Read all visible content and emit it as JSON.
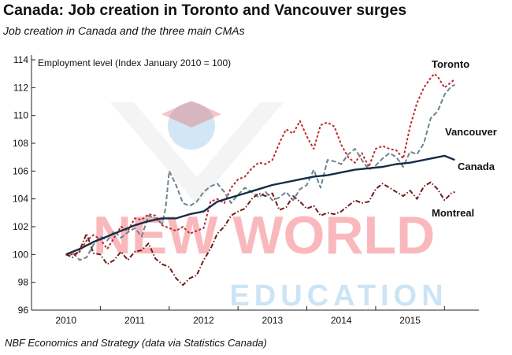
{
  "title": "Canada: Job creation in Toronto and Vancouver surges",
  "subtitle": "Job creation in Canada and the three main CMAs",
  "source": "NBF Economics and Strategy (data via Statistics Canada)",
  "watermark": {
    "line1": "NEW WORLD",
    "line2": "EDUCATION"
  },
  "chart_data": {
    "type": "line",
    "ylabel": "Employment level (Index January 2010 = 100)",
    "ylim": [
      96,
      114
    ],
    "yticks": [
      96,
      98,
      100,
      102,
      104,
      106,
      108,
      110,
      112,
      114
    ],
    "xlim": [
      2009.5,
      2016.0
    ],
    "xticks": [
      "2010",
      "2011",
      "2012",
      "2013",
      "2014",
      "2015"
    ],
    "grid": false,
    "series": [
      {
        "name": "Toronto",
        "color": "#c0262d",
        "dash": "3,2.5",
        "width": 2,
        "points": [
          [
            2010.0,
            100.0
          ],
          [
            2010.1,
            100.0
          ],
          [
            2010.2,
            100.2
          ],
          [
            2010.3,
            101.0
          ],
          [
            2010.4,
            101.4
          ],
          [
            2010.5,
            101.1
          ],
          [
            2010.6,
            100.4
          ],
          [
            2010.7,
            101.2
          ],
          [
            2010.8,
            102.0
          ],
          [
            2010.9,
            101.7
          ],
          [
            2011.0,
            102.6
          ],
          [
            2011.1,
            102.5
          ],
          [
            2011.2,
            102.9
          ],
          [
            2011.3,
            102.8
          ],
          [
            2011.4,
            102.1
          ],
          [
            2011.5,
            101.9
          ],
          [
            2011.6,
            101.7
          ],
          [
            2011.7,
            102.0
          ],
          [
            2011.8,
            101.5
          ],
          [
            2011.9,
            101.7
          ],
          [
            2012.0,
            101.9
          ],
          [
            2012.1,
            103.8
          ],
          [
            2012.2,
            104.0
          ],
          [
            2012.3,
            103.7
          ],
          [
            2012.4,
            104.8
          ],
          [
            2012.5,
            105.4
          ],
          [
            2012.6,
            105.6
          ],
          [
            2012.7,
            106.2
          ],
          [
            2012.8,
            106.6
          ],
          [
            2012.9,
            106.5
          ],
          [
            2013.0,
            106.8
          ],
          [
            2013.1,
            108.0
          ],
          [
            2013.2,
            109.0
          ],
          [
            2013.3,
            108.7
          ],
          [
            2013.4,
            109.6
          ],
          [
            2013.5,
            108.5
          ],
          [
            2013.6,
            107.6
          ],
          [
            2013.7,
            109.3
          ],
          [
            2013.8,
            109.5
          ],
          [
            2013.9,
            109.2
          ],
          [
            2014.0,
            107.9
          ],
          [
            2014.1,
            107.0
          ],
          [
            2014.2,
            106.6
          ],
          [
            2014.3,
            107.3
          ],
          [
            2014.4,
            106.3
          ],
          [
            2014.5,
            107.6
          ],
          [
            2014.6,
            107.8
          ],
          [
            2014.7,
            107.6
          ],
          [
            2014.8,
            107.5
          ],
          [
            2014.9,
            106.9
          ],
          [
            2015.0,
            109.2
          ],
          [
            2015.1,
            110.9
          ],
          [
            2015.2,
            112.0
          ],
          [
            2015.3,
            112.7
          ],
          [
            2015.35,
            113.0
          ],
          [
            2015.4,
            112.8
          ],
          [
            2015.5,
            112.0
          ],
          [
            2015.6,
            112.4
          ],
          [
            2015.65,
            112.6
          ]
        ]
      },
      {
        "name": "Vancouver",
        "color": "#6b8590",
        "dash": "6,3",
        "width": 2,
        "points": [
          [
            2010.0,
            100.0
          ],
          [
            2010.1,
            100.1
          ],
          [
            2010.2,
            99.6
          ],
          [
            2010.3,
            99.8
          ],
          [
            2010.4,
            100.7
          ],
          [
            2010.5,
            101.3
          ],
          [
            2010.6,
            101.0
          ],
          [
            2010.7,
            101.7
          ],
          [
            2010.8,
            101.2
          ],
          [
            2010.9,
            101.6
          ],
          [
            2011.0,
            101.9
          ],
          [
            2011.1,
            101.3
          ],
          [
            2011.2,
            102.8
          ],
          [
            2011.3,
            102.6
          ],
          [
            2011.4,
            102.2
          ],
          [
            2011.45,
            103.4
          ],
          [
            2011.5,
            106.0
          ],
          [
            2011.6,
            105.0
          ],
          [
            2011.7,
            103.7
          ],
          [
            2011.8,
            103.5
          ],
          [
            2011.9,
            103.8
          ],
          [
            2012.0,
            104.5
          ],
          [
            2012.1,
            104.9
          ],
          [
            2012.2,
            105.1
          ],
          [
            2012.3,
            104.5
          ],
          [
            2012.4,
            103.7
          ],
          [
            2012.5,
            104.3
          ],
          [
            2012.6,
            104.8
          ],
          [
            2012.7,
            104.5
          ],
          [
            2012.8,
            104.1
          ],
          [
            2012.9,
            104.5
          ],
          [
            2013.0,
            103.9
          ],
          [
            2013.1,
            104.1
          ],
          [
            2013.2,
            104.5
          ],
          [
            2013.3,
            103.9
          ],
          [
            2013.4,
            104.7
          ],
          [
            2013.5,
            105.0
          ],
          [
            2013.6,
            106.1
          ],
          [
            2013.7,
            104.8
          ],
          [
            2013.8,
            106.8
          ],
          [
            2013.9,
            106.7
          ],
          [
            2014.0,
            106.5
          ],
          [
            2014.1,
            107.2
          ],
          [
            2014.2,
            107.6
          ],
          [
            2014.3,
            106.8
          ],
          [
            2014.4,
            106.1
          ],
          [
            2014.5,
            106.4
          ],
          [
            2014.6,
            106.9
          ],
          [
            2014.7,
            107.3
          ],
          [
            2014.8,
            107.0
          ],
          [
            2014.9,
            106.3
          ],
          [
            2015.0,
            107.4
          ],
          [
            2015.1,
            107.2
          ],
          [
            2015.2,
            108.0
          ],
          [
            2015.3,
            109.8
          ],
          [
            2015.4,
            110.3
          ],
          [
            2015.5,
            111.5
          ],
          [
            2015.6,
            112.1
          ],
          [
            2015.65,
            112.2
          ]
        ]
      },
      {
        "name": "Canada",
        "color": "#142d45",
        "dash": "",
        "width": 2.4,
        "points": [
          [
            2010.0,
            100.0
          ],
          [
            2010.2,
            100.4
          ],
          [
            2010.4,
            100.9
          ],
          [
            2010.6,
            101.3
          ],
          [
            2010.8,
            101.7
          ],
          [
            2011.0,
            102.1
          ],
          [
            2011.2,
            102.4
          ],
          [
            2011.4,
            102.6
          ],
          [
            2011.6,
            102.6
          ],
          [
            2011.8,
            102.9
          ],
          [
            2012.0,
            103.1
          ],
          [
            2012.2,
            103.8
          ],
          [
            2012.4,
            104.1
          ],
          [
            2012.6,
            104.4
          ],
          [
            2012.8,
            104.7
          ],
          [
            2013.0,
            105.0
          ],
          [
            2013.2,
            105.2
          ],
          [
            2013.4,
            105.4
          ],
          [
            2013.6,
            105.6
          ],
          [
            2013.8,
            105.7
          ],
          [
            2014.0,
            105.9
          ],
          [
            2014.2,
            106.1
          ],
          [
            2014.4,
            106.2
          ],
          [
            2014.6,
            106.3
          ],
          [
            2014.8,
            106.5
          ],
          [
            2015.0,
            106.6
          ],
          [
            2015.2,
            106.8
          ],
          [
            2015.4,
            107.0
          ],
          [
            2015.5,
            107.1
          ],
          [
            2015.65,
            106.8
          ]
        ]
      },
      {
        "name": "Montreal",
        "color": "#6e1a1a",
        "dash": "6,2.5,1.5,2.5",
        "width": 2,
        "points": [
          [
            2010.0,
            100.0
          ],
          [
            2010.1,
            99.8
          ],
          [
            2010.2,
            100.3
          ],
          [
            2010.3,
            101.5
          ],
          [
            2010.4,
            100.1
          ],
          [
            2010.5,
            100.0
          ],
          [
            2010.6,
            99.3
          ],
          [
            2010.7,
            99.6
          ],
          [
            2010.8,
            100.2
          ],
          [
            2010.9,
            99.6
          ],
          [
            2011.0,
            100.2
          ],
          [
            2011.1,
            100.3
          ],
          [
            2011.2,
            100.8
          ],
          [
            2011.3,
            99.7
          ],
          [
            2011.4,
            99.3
          ],
          [
            2011.5,
            99.1
          ],
          [
            2011.6,
            98.3
          ],
          [
            2011.7,
            97.8
          ],
          [
            2011.8,
            98.3
          ],
          [
            2011.9,
            98.5
          ],
          [
            2012.0,
            99.6
          ],
          [
            2012.1,
            100.4
          ],
          [
            2012.2,
            101.5
          ],
          [
            2012.3,
            102.0
          ],
          [
            2012.4,
            102.8
          ],
          [
            2012.5,
            103.1
          ],
          [
            2012.6,
            103.3
          ],
          [
            2012.7,
            104.0
          ],
          [
            2012.8,
            104.4
          ],
          [
            2012.9,
            104.2
          ],
          [
            2013.0,
            104.4
          ],
          [
            2013.1,
            103.2
          ],
          [
            2013.2,
            103.4
          ],
          [
            2013.3,
            104.2
          ],
          [
            2013.4,
            103.8
          ],
          [
            2013.5,
            103.3
          ],
          [
            2013.6,
            103.5
          ],
          [
            2013.7,
            102.8
          ],
          [
            2013.8,
            103.0
          ],
          [
            2013.9,
            102.9
          ],
          [
            2014.0,
            103.1
          ],
          [
            2014.1,
            103.5
          ],
          [
            2014.2,
            103.9
          ],
          [
            2014.3,
            103.7
          ],
          [
            2014.4,
            103.8
          ],
          [
            2014.5,
            104.7
          ],
          [
            2014.6,
            105.1
          ],
          [
            2014.7,
            104.8
          ],
          [
            2014.8,
            104.5
          ],
          [
            2014.9,
            104.2
          ],
          [
            2015.0,
            104.6
          ],
          [
            2015.1,
            104.0
          ],
          [
            2015.2,
            104.9
          ],
          [
            2015.3,
            105.2
          ],
          [
            2015.4,
            104.7
          ],
          [
            2015.5,
            103.9
          ],
          [
            2015.6,
            104.4
          ],
          [
            2015.65,
            104.5
          ]
        ]
      }
    ]
  }
}
